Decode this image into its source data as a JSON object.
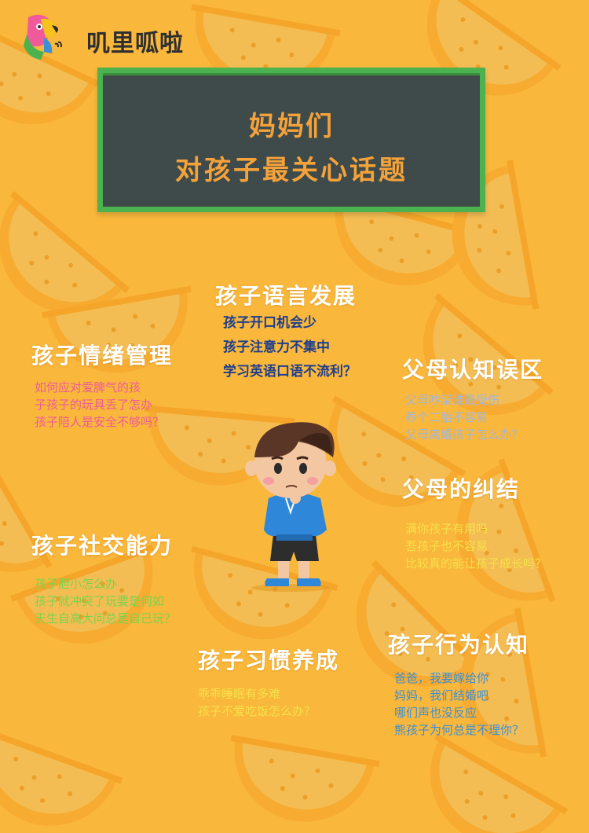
{
  "brand": {
    "name": "叽里呱啦"
  },
  "board": {
    "line1": "妈妈们",
    "line2": "对孩子最关心话题"
  },
  "topics": {
    "language": {
      "title": "孩子语言发展",
      "items": [
        "孩子开口机会少",
        "孩子注意力不集中",
        "学习英语口语不流利？"
      ]
    },
    "emotion": {
      "title": "孩子情绪管理",
      "items": [
        "如何应对爱脾气的孩",
        "子孩子的玩具丢了怎办",
        "孩子陪人是安全不够吗？"
      ]
    },
    "misconceptions": {
      "title": "父母认知误区",
      "items": [
        "父母吵架谁最受伤",
        "养个二胎不容易",
        "父母离婚孩子怎么办？"
      ]
    },
    "dilemmas": {
      "title": "父母的纠结",
      "items": [
        "满你孩子有用吗",
        "吾孩子也不容易",
        "比较真的能让孩子成长吗？"
      ]
    },
    "social": {
      "title": "孩子社交能力",
      "items": [
        "孩子胆小怎么办",
        "孩子就冲突了玩要是何如",
        "天生自高大问总是自己玩？"
      ]
    },
    "habits": {
      "title": "孩子习惯养成",
      "items": [
        "乖乖睡眠有多难",
        "孩子不爱吃饭怎么办？"
      ]
    },
    "behavior": {
      "title": "孩子行为认知",
      "items": [
        "爸爸，我要嫁给你",
        "妈妈，我们结婚吧",
        "哪们声也没反应",
        "熊孩子为何总是不理你？"
      ]
    }
  },
  "colors": {
    "background": "#f9b73b",
    "board_fill": "#3e4b4a",
    "board_border": "#4cb14f",
    "board_text": "#f5a23a",
    "title_text": "#ffffff",
    "language_items": "#1f3e8c",
    "emotion_items": "#f05a9a",
    "misconceptions_items": "#a3b7d8",
    "dilemmas_items": "#f6e14b",
    "social_items": "#7bd34b",
    "habits_items": "#f6e14b",
    "behavior_items": "#3a8fd6"
  },
  "icons": {
    "logo": "parrot-logo-icon",
    "illustration": "thinking-boy-illustration"
  }
}
